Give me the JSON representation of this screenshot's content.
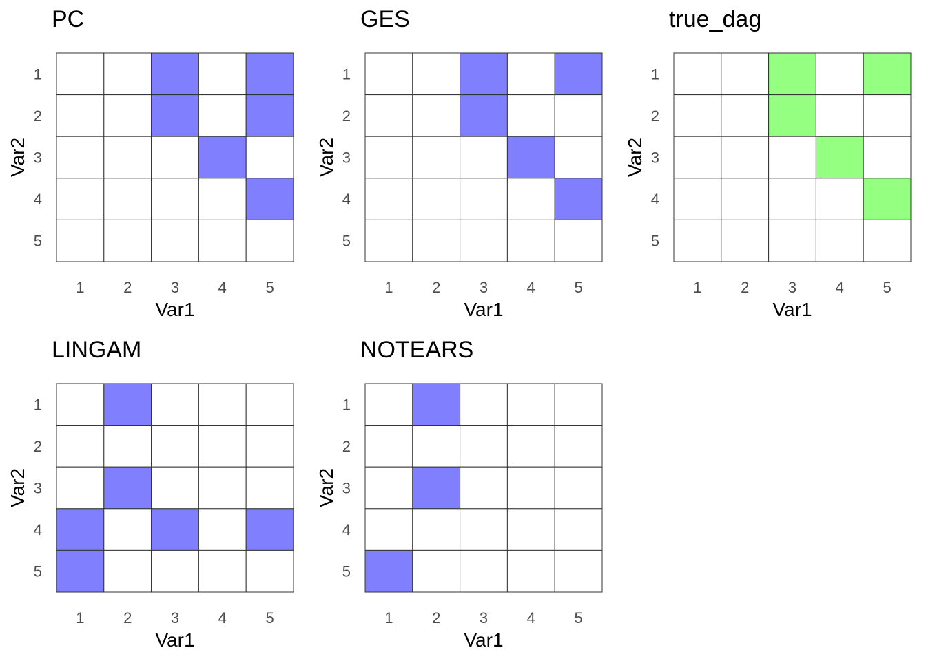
{
  "chart_data": [
    {
      "type": "heatmap",
      "title": "PC",
      "xlabel": "Var1",
      "ylabel": "Var2",
      "x_ticks": [
        "1",
        "2",
        "3",
        "4",
        "5"
      ],
      "y_ticks": [
        "1",
        "2",
        "3",
        "4",
        "5"
      ],
      "fill_color": "#8080ff",
      "matrix": [
        [
          0,
          0,
          1,
          0,
          1
        ],
        [
          0,
          0,
          1,
          0,
          1
        ],
        [
          0,
          0,
          0,
          1,
          0
        ],
        [
          0,
          0,
          0,
          0,
          1
        ],
        [
          0,
          0,
          0,
          0,
          0
        ]
      ]
    },
    {
      "type": "heatmap",
      "title": "GES",
      "xlabel": "Var1",
      "ylabel": "Var2",
      "x_ticks": [
        "1",
        "2",
        "3",
        "4",
        "5"
      ],
      "y_ticks": [
        "1",
        "2",
        "3",
        "4",
        "5"
      ],
      "fill_color": "#8080ff",
      "matrix": [
        [
          0,
          0,
          1,
          0,
          1
        ],
        [
          0,
          0,
          1,
          0,
          0
        ],
        [
          0,
          0,
          0,
          1,
          0
        ],
        [
          0,
          0,
          0,
          0,
          1
        ],
        [
          0,
          0,
          0,
          0,
          0
        ]
      ]
    },
    {
      "type": "heatmap",
      "title": "true_dag",
      "xlabel": "Var1",
      "ylabel": "Var2",
      "x_ticks": [
        "1",
        "2",
        "3",
        "4",
        "5"
      ],
      "y_ticks": [
        "1",
        "2",
        "3",
        "4",
        "5"
      ],
      "fill_color": "#94ff80",
      "matrix": [
        [
          0,
          0,
          1,
          0,
          1
        ],
        [
          0,
          0,
          1,
          0,
          0
        ],
        [
          0,
          0,
          0,
          1,
          0
        ],
        [
          0,
          0,
          0,
          0,
          1
        ],
        [
          0,
          0,
          0,
          0,
          0
        ]
      ]
    },
    {
      "type": "heatmap",
      "title": "LINGAM",
      "xlabel": "Var1",
      "ylabel": "Var2",
      "x_ticks": [
        "1",
        "2",
        "3",
        "4",
        "5"
      ],
      "y_ticks": [
        "1",
        "2",
        "3",
        "4",
        "5"
      ],
      "fill_color": "#8080ff",
      "matrix": [
        [
          0,
          1,
          0,
          0,
          0
        ],
        [
          0,
          0,
          0,
          0,
          0
        ],
        [
          0,
          1,
          0,
          0,
          0
        ],
        [
          1,
          0,
          1,
          0,
          1
        ],
        [
          1,
          0,
          0,
          0,
          0
        ]
      ]
    },
    {
      "type": "heatmap",
      "title": "NOTEARS",
      "xlabel": "Var1",
      "ylabel": "Var2",
      "x_ticks": [
        "1",
        "2",
        "3",
        "4",
        "5"
      ],
      "y_ticks": [
        "1",
        "2",
        "3",
        "4",
        "5"
      ],
      "fill_color": "#8080ff",
      "matrix": [
        [
          0,
          1,
          0,
          0,
          0
        ],
        [
          0,
          0,
          0,
          0,
          0
        ],
        [
          0,
          1,
          0,
          0,
          0
        ],
        [
          0,
          0,
          0,
          0,
          0
        ],
        [
          1,
          0,
          0,
          0,
          0
        ]
      ]
    }
  ]
}
